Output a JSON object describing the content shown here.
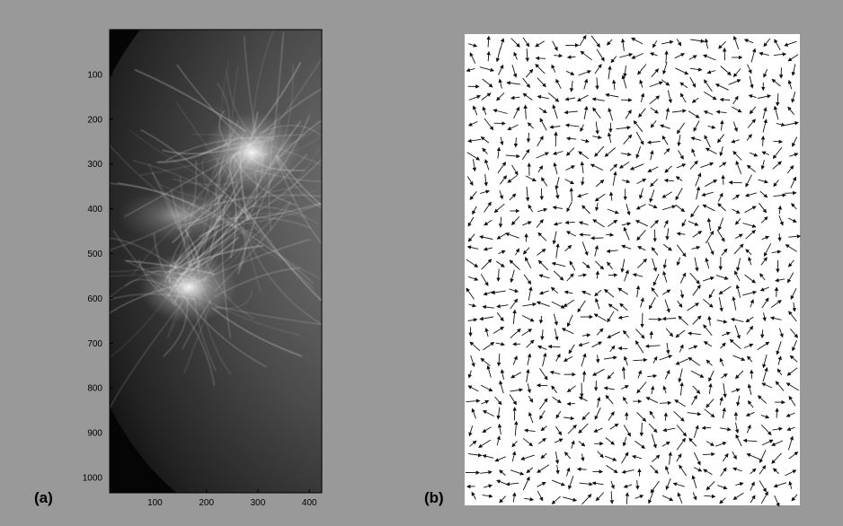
{
  "panel_a": {
    "label": "(a)",
    "xlim": [
      12,
      424
    ],
    "ylim": [
      0,
      1034
    ],
    "xticks": [
      100,
      200,
      300,
      400
    ],
    "yticks": [
      100,
      200,
      300,
      400,
      500,
      600,
      700,
      800,
      900,
      1000
    ]
  },
  "panel_b": {
    "label": "(b)"
  }
}
